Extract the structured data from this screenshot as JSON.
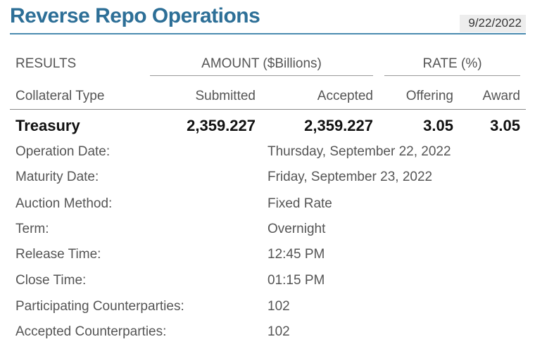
{
  "header": {
    "title": "Reverse Repo Operations",
    "date": "9/22/2022"
  },
  "table": {
    "group_results": "RESULTS",
    "group_amount": "AMOUNT ($Billions)",
    "group_rate": "RATE (%)",
    "columns": {
      "collateral_type": "Collateral Type",
      "submitted": "Submitted",
      "accepted": "Accepted",
      "offering": "Offering",
      "award": "Award"
    },
    "row": {
      "collateral": "Treasury",
      "submitted": "2,359.227",
      "accepted": "2,359.227",
      "offering": "3.05",
      "award": "3.05"
    }
  },
  "details": [
    {
      "label": "Operation Date:",
      "value": "Thursday, September 22, 2022"
    },
    {
      "label": "Maturity Date:",
      "value": "Friday, September 23, 2022"
    },
    {
      "label": "Auction Method:",
      "value": "Fixed Rate"
    },
    {
      "label": "Term:",
      "value": "Overnight"
    },
    {
      "label": "Release Time:",
      "value": "12:45 PM"
    },
    {
      "label": "Close Time:",
      "value": "01:15 PM"
    },
    {
      "label": "Participating Counterparties:",
      "value": "102"
    },
    {
      "label": "Accepted Counterparties:",
      "value": "102"
    }
  ]
}
